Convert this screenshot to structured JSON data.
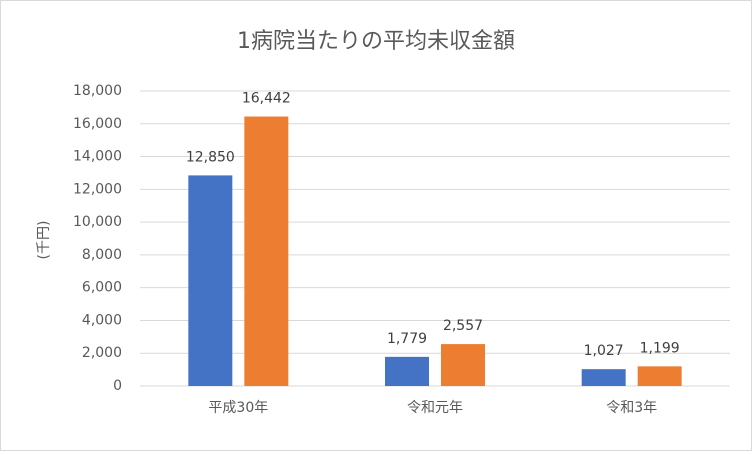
{
  "chart_data": {
    "type": "bar",
    "title": "1病院当たりの平均未収金額",
    "y_label": "(千円)",
    "categories": [
      "平成30年",
      "令和元年",
      "令和3年"
    ],
    "series": [
      {
        "color": "#4472c4",
        "values": [
          12850,
          1779,
          1027
        ],
        "value_labels": [
          "12,850",
          "1,779",
          "1,027"
        ]
      },
      {
        "color": "#ed7d31",
        "values": [
          16442,
          2557,
          1199
        ],
        "value_labels": [
          "16,442",
          "2,557",
          "1,199"
        ]
      }
    ],
    "ylim": [
      0,
      18000
    ],
    "yticks": [
      0,
      {
        "value": 2000,
        "label": "2,000"
      },
      {
        "value": 4000,
        "label": "4,000"
      },
      {
        "value": 6000,
        "label": "6,000"
      },
      {
        "value": 8000,
        "label": "8,000"
      },
      {
        "value": 10000,
        "label": "10,000"
      },
      {
        "value": 12000,
        "label": "12,000"
      },
      {
        "value": 14000,
        "label": "14,000"
      },
      {
        "value": 16000,
        "label": "16,000"
      },
      {
        "value": 18000,
        "label": "18,000"
      }
    ],
    "grid": true
  }
}
